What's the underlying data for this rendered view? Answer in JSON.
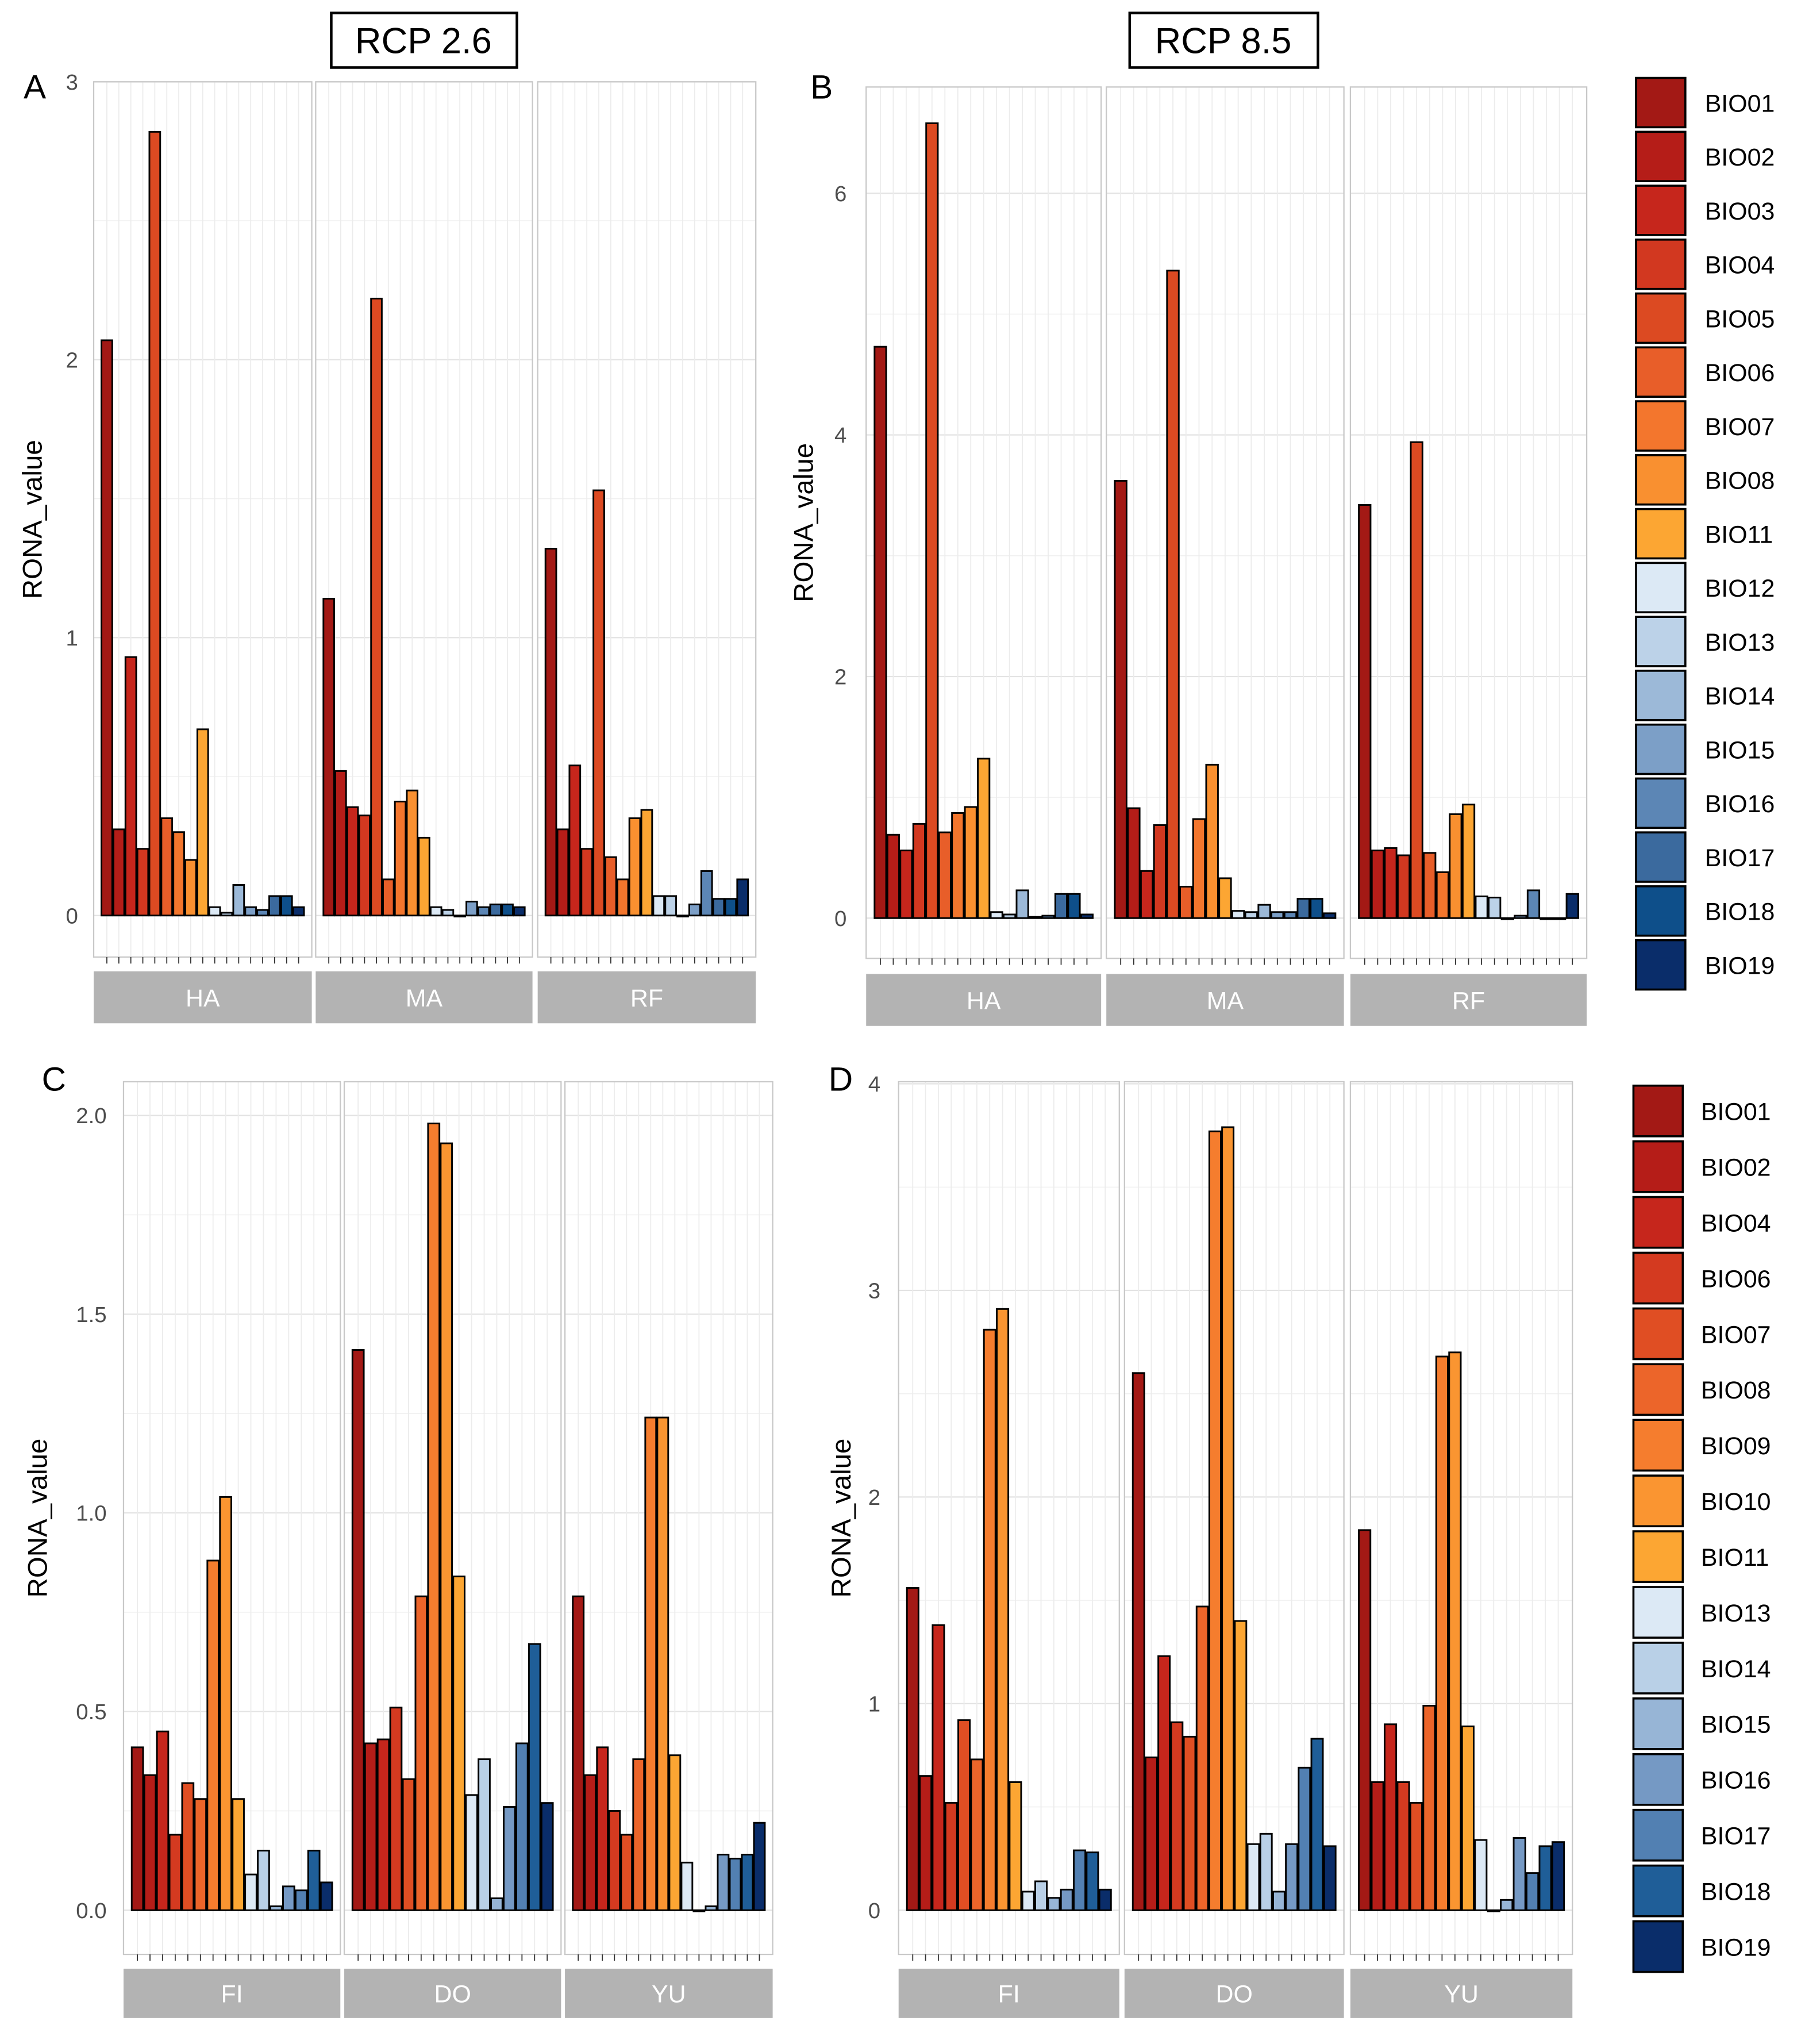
{
  "column_titles": [
    "RCP 2.6",
    "RCP 8.5"
  ],
  "legend_top": {
    "labels": [
      "BIO01",
      "BIO02",
      "BIO03",
      "BIO04",
      "BIO05",
      "BIO06",
      "BIO07",
      "BIO08",
      "BIO11",
      "BIO12",
      "BIO13",
      "BIO14",
      "BIO15",
      "BIO16",
      "BIO17",
      "BIO18",
      "BIO19"
    ],
    "colors": [
      "#A31915",
      "#B51D18",
      "#C6261C",
      "#D23820",
      "#DC4A22",
      "#E85E29",
      "#F3762D",
      "#F99030",
      "#FCA633",
      "#DCE9F5",
      "#BCD2E8",
      "#9CB9D8",
      "#7C9FC7",
      "#5C86B5",
      "#3B6A9E",
      "#0E4F8A",
      "#0A2D6A"
    ]
  },
  "legend_bottom": {
    "labels": [
      "BIO01",
      "BIO02",
      "BIO04",
      "BIO06",
      "BIO07",
      "BIO08",
      "BIO09",
      "BIO10",
      "BIO11",
      "BIO13",
      "BIO14",
      "BIO15",
      "BIO16",
      "BIO17",
      "BIO18",
      "BIO19"
    ],
    "colors": [
      "#A31915",
      "#B51D18",
      "#C6261C",
      "#D43A20",
      "#E04E23",
      "#EC652A",
      "#F57D2E",
      "#FA9531",
      "#FCA633",
      "#DCE9F5",
      "#B9D0E7",
      "#97B5D6",
      "#7599C4",
      "#5280B2",
      "#1F5E98",
      "#0A2D6A"
    ]
  },
  "chart_data": [
    {
      "panel": "A",
      "type": "bar",
      "title": "RCP 2.6",
      "ylabel": "RONA_value",
      "ylim": [
        0,
        3.0
      ],
      "yticks": [
        0,
        1,
        2,
        3
      ],
      "yticklabels": [
        "0",
        "1",
        "2",
        "3"
      ],
      "legend": "legend_top",
      "facets": [
        {
          "name": "HA",
          "values": [
            2.07,
            0.31,
            0.93,
            0.24,
            2.82,
            0.35,
            0.3,
            0.2,
            0.67,
            0.03,
            0.01,
            0.11,
            0.03,
            0.02,
            0.07,
            0.07,
            0.03
          ]
        },
        {
          "name": "MA",
          "values": [
            1.14,
            0.52,
            0.39,
            0.36,
            2.22,
            0.13,
            0.41,
            0.45,
            0.28,
            0.03,
            0.02,
            0.0,
            0.05,
            0.03,
            0.04,
            0.04,
            0.03
          ]
        },
        {
          "name": "RF",
          "values": [
            1.32,
            0.31,
            0.54,
            0.24,
            1.53,
            0.21,
            0.13,
            0.35,
            0.38,
            0.07,
            0.07,
            0.0,
            0.04,
            0.16,
            0.06,
            0.06,
            0.13
          ]
        }
      ]
    },
    {
      "panel": "B",
      "type": "bar",
      "title": "RCP 8.5",
      "ylabel": "RONA_value",
      "ylim": [
        0,
        6.88
      ],
      "yticks": [
        0,
        2,
        4,
        6
      ],
      "yticklabels": [
        "0",
        "2",
        "4",
        "6"
      ],
      "legend": "legend_top",
      "facets": [
        {
          "name": "HA",
          "values": [
            4.73,
            0.69,
            0.56,
            0.78,
            6.58,
            0.71,
            0.87,
            0.92,
            1.32,
            0.05,
            0.03,
            0.23,
            0.01,
            0.02,
            0.2,
            0.2,
            0.03
          ]
        },
        {
          "name": "MA",
          "values": [
            3.62,
            0.91,
            0.39,
            0.77,
            5.36,
            0.26,
            0.82,
            1.27,
            0.33,
            0.06,
            0.05,
            0.11,
            0.05,
            0.05,
            0.16,
            0.16,
            0.04
          ]
        },
        {
          "name": "RF",
          "values": [
            3.42,
            0.56,
            0.58,
            0.52,
            3.94,
            0.54,
            0.38,
            0.86,
            0.94,
            0.18,
            0.17,
            0.0,
            0.02,
            0.23,
            0.0,
            0.0,
            0.2
          ]
        }
      ]
    },
    {
      "panel": "C",
      "type": "bar",
      "title": "RCP 2.6",
      "ylabel": "RONA_value",
      "ylim": [
        0,
        2.085
      ],
      "yticks": [
        0,
        0.5,
        1.0,
        1.5,
        2.0
      ],
      "yticklabels": [
        "0.0",
        "0.5",
        "1.0",
        "1.5",
        "2.0"
      ],
      "legend": "legend_bottom",
      "facets": [
        {
          "name": "FI",
          "values": [
            0.41,
            0.34,
            0.45,
            0.19,
            0.32,
            0.28,
            0.88,
            1.04,
            0.28,
            0.09,
            0.15,
            0.01,
            0.06,
            0.05,
            0.15,
            0.07
          ]
        },
        {
          "name": "DO",
          "values": [
            1.41,
            0.42,
            0.43,
            0.51,
            0.33,
            0.79,
            1.98,
            1.93,
            0.84,
            0.29,
            0.38,
            0.03,
            0.26,
            0.42,
            0.67,
            0.27
          ]
        },
        {
          "name": "YU",
          "values": [
            0.79,
            0.34,
            0.41,
            0.25,
            0.19,
            0.38,
            1.24,
            1.24,
            0.39,
            0.12,
            0.0,
            0.01,
            0.14,
            0.13,
            0.14,
            0.22
          ]
        }
      ]
    },
    {
      "panel": "D",
      "type": "bar",
      "title": "RCP 8.5",
      "ylabel": "RONA_value",
      "ylim": [
        0,
        4.01
      ],
      "yticks": [
        0,
        1,
        2,
        3,
        4
      ],
      "yticklabels": [
        "0",
        "1",
        "2",
        "3",
        "4"
      ],
      "legend": "legend_bottom",
      "facets": [
        {
          "name": "FI",
          "values": [
            1.56,
            0.65,
            1.38,
            0.52,
            0.92,
            0.73,
            2.81,
            2.91,
            0.62,
            0.09,
            0.14,
            0.06,
            0.1,
            0.29,
            0.28,
            0.1
          ]
        },
        {
          "name": "DO",
          "values": [
            2.6,
            0.74,
            1.23,
            0.91,
            0.84,
            1.47,
            3.77,
            3.79,
            1.4,
            0.32,
            0.37,
            0.09,
            0.32,
            0.69,
            0.83,
            0.31
          ]
        },
        {
          "name": "YU",
          "values": [
            1.84,
            0.62,
            0.9,
            0.62,
            0.52,
            0.99,
            2.68,
            2.7,
            0.89,
            0.34,
            0.0,
            0.05,
            0.35,
            0.18,
            0.31,
            0.33
          ]
        }
      ]
    }
  ]
}
